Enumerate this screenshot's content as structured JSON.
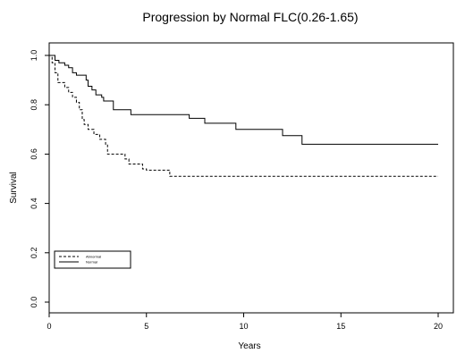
{
  "chart_data": {
    "type": "line",
    "title": "Progression by Normal FLC(0.26-1.65)",
    "xlabel": "Years",
    "ylabel": "Survival",
    "xlim": [
      0,
      20
    ],
    "ylim": [
      0,
      1
    ],
    "xticks": [
      0,
      5,
      10,
      15,
      20
    ],
    "yticks": [
      0.0,
      0.2,
      0.4,
      0.6,
      0.8,
      1.0
    ],
    "legend_position": "bottom-left",
    "series": [
      {
        "name": "Abnormal",
        "style": "dashed",
        "color": "#000000",
        "step_points": [
          [
            0,
            1.0
          ],
          [
            0.15,
            0.97
          ],
          [
            0.3,
            0.93
          ],
          [
            0.45,
            0.89
          ],
          [
            0.8,
            0.87
          ],
          [
            1.0,
            0.85
          ],
          [
            1.2,
            0.83
          ],
          [
            1.4,
            0.81
          ],
          [
            1.55,
            0.78
          ],
          [
            1.7,
            0.74
          ],
          [
            1.8,
            0.72
          ],
          [
            2.0,
            0.7
          ],
          [
            2.3,
            0.68
          ],
          [
            2.6,
            0.66
          ],
          [
            2.9,
            0.64
          ],
          [
            3.0,
            0.6
          ],
          [
            3.9,
            0.58
          ],
          [
            4.1,
            0.56
          ],
          [
            4.8,
            0.54
          ],
          [
            5.0,
            0.535
          ],
          [
            6.2,
            0.51
          ],
          [
            20,
            0.51
          ]
        ]
      },
      {
        "name": "Normal",
        "style": "solid",
        "color": "#000000",
        "step_points": [
          [
            0,
            1.0
          ],
          [
            0.3,
            0.98
          ],
          [
            0.5,
            0.97
          ],
          [
            0.8,
            0.96
          ],
          [
            1.0,
            0.95
          ],
          [
            1.2,
            0.93
          ],
          [
            1.4,
            0.92
          ],
          [
            1.9,
            0.9
          ],
          [
            2.0,
            0.875
          ],
          [
            2.2,
            0.86
          ],
          [
            2.4,
            0.84
          ],
          [
            2.7,
            0.83
          ],
          [
            2.8,
            0.815
          ],
          [
            3.3,
            0.78
          ],
          [
            4.2,
            0.76
          ],
          [
            7.2,
            0.745
          ],
          [
            8.0,
            0.725
          ],
          [
            9.6,
            0.7
          ],
          [
            12.0,
            0.675
          ],
          [
            13.0,
            0.64
          ],
          [
            20,
            0.64
          ]
        ]
      }
    ]
  }
}
